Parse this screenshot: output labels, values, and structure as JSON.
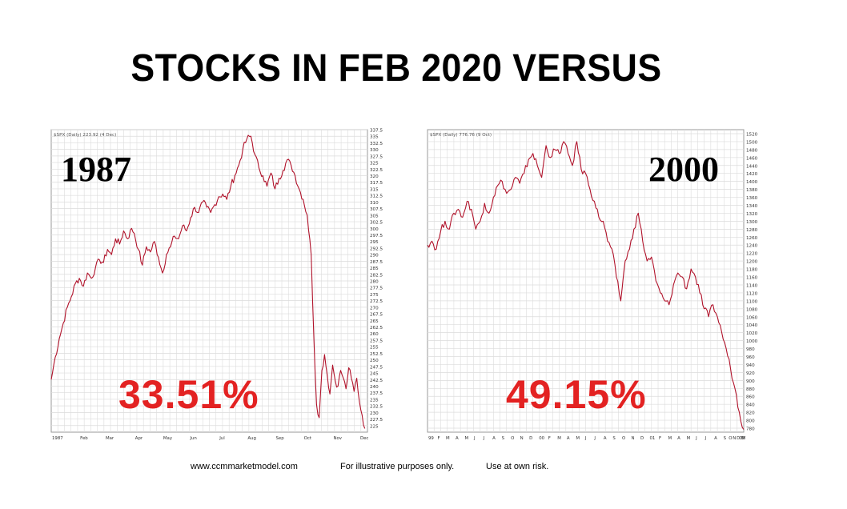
{
  "title": "STOCKS IN FEB 2020 VERSUS",
  "footer": {
    "site": "www.ccmmarketmodel.com",
    "note1": "For illustrative purposes only.",
    "note2": "Use at own risk."
  },
  "colors": {
    "line": "#b0122a",
    "grid": "#dcdcdc",
    "pct": "#e32222"
  },
  "chart_data": [
    {
      "type": "line",
      "legend": "$SPX (Daily) 223.92 (4 Dec)",
      "year_label": "1987",
      "decline_label": "33.51%",
      "ylim": [
        222.5,
        337.5
      ],
      "xlim": [
        0,
        236
      ],
      "y_ticks": [
        337.5,
        335.0,
        332.5,
        330.0,
        327.5,
        325.0,
        322.5,
        320.0,
        317.5,
        315.0,
        312.5,
        310.0,
        307.5,
        305.0,
        302.5,
        300.0,
        297.5,
        295.0,
        292.5,
        290.0,
        287.5,
        285.0,
        282.5,
        280.0,
        277.5,
        275.0,
        272.5,
        270.0,
        267.5,
        265.0,
        262.5,
        260.0,
        257.5,
        255.0,
        252.5,
        250.0,
        247.5,
        245.0,
        242.5,
        240.0,
        237.5,
        235.0,
        232.5,
        230.0,
        227.5,
        225.0
      ],
      "x_ticks": [
        {
          "x": 0,
          "label": "1987"
        },
        {
          "x": 21,
          "label": "Feb"
        },
        {
          "x": 40,
          "label": "Mar"
        },
        {
          "x": 62,
          "label": "Apr"
        },
        {
          "x": 83,
          "label": "May"
        },
        {
          "x": 103,
          "label": "Jun"
        },
        {
          "x": 125,
          "label": "Jul"
        },
        {
          "x": 146,
          "label": "Aug"
        },
        {
          "x": 167,
          "label": "Sep"
        },
        {
          "x": 188,
          "label": "Oct"
        },
        {
          "x": 210,
          "label": "Nov"
        },
        {
          "x": 230,
          "label": "Dec"
        }
      ],
      "series": [
        {
          "x": [
            0,
            3,
            6,
            9,
            12,
            15,
            18,
            21,
            24,
            27,
            30,
            33,
            36,
            39,
            42,
            45,
            48,
            51,
            54,
            57,
            60,
            62,
            65,
            68,
            71,
            74,
            77,
            80,
            83,
            86,
            89,
            92,
            95,
            98,
            101,
            104,
            107,
            110,
            113,
            116,
            119,
            122,
            125,
            128,
            131,
            134,
            137,
            140,
            143,
            146,
            149,
            152,
            155,
            158,
            161,
            164,
            167,
            170,
            173,
            176,
            179,
            182,
            185,
            188,
            191,
            194,
            196,
            198,
            200,
            202,
            204,
            206,
            208,
            210,
            212,
            214,
            216,
            218,
            220,
            222,
            224,
            226,
            228,
            230,
            232,
            234
          ],
          "y": [
            242.5,
            251.0,
            258.0,
            264.0,
            270.0,
            274.0,
            279.0,
            281.0,
            278.0,
            283.0,
            281.0,
            285.0,
            288.0,
            287.0,
            292.0,
            290.0,
            296.0,
            294.0,
            299.0,
            296.0,
            300.0,
            298.0,
            292.0,
            286.0,
            293.0,
            291.0,
            295.0,
            289.0,
            283.0,
            290.0,
            293.0,
            297.0,
            296.0,
            301.0,
            299.0,
            304.0,
            308.0,
            306.0,
            310.0,
            308.0,
            306.0,
            309.0,
            312.0,
            313.0,
            311.0,
            316.0,
            320.0,
            324.0,
            330.0,
            334.0,
            335.0,
            328.0,
            323.0,
            320.0,
            316.0,
            321.0,
            315.0,
            319.0,
            322.0,
            326.0,
            324.0,
            320.0,
            315.0,
            311.0,
            305.0,
            290.0,
            258.0,
            233.0,
            228.0,
            246.0,
            252.0,
            244.0,
            237.0,
            248.0,
            242.0,
            240.0,
            246.0,
            243.0,
            239.0,
            247.0,
            243.0,
            238.0,
            243.0,
            234.0,
            229.0,
            223.9
          ]
        }
      ]
    },
    {
      "type": "line",
      "legend": "$SPX (Daily) 776.76 (9 Oct)",
      "year_label": "2000",
      "decline_label": "49.15%",
      "ylim": [
        770,
        1530
      ],
      "xlim": [
        0,
        720
      ],
      "y_ticks": [
        1520,
        1500,
        1480,
        1460,
        1440,
        1420,
        1400,
        1380,
        1360,
        1340,
        1320,
        1300,
        1280,
        1260,
        1240,
        1220,
        1200,
        1180,
        1160,
        1140,
        1120,
        1100,
        1080,
        1060,
        1040,
        1020,
        1000,
        980,
        960,
        940,
        920,
        900,
        880,
        860,
        840,
        820,
        800,
        780
      ],
      "x_ticks": [
        {
          "x": 0,
          "label": "99"
        },
        {
          "x": 21,
          "label": "F"
        },
        {
          "x": 40,
          "label": "M"
        },
        {
          "x": 62,
          "label": "A"
        },
        {
          "x": 83,
          "label": "M"
        },
        {
          "x": 104,
          "label": "J"
        },
        {
          "x": 125,
          "label": "J"
        },
        {
          "x": 146,
          "label": "A"
        },
        {
          "x": 167,
          "label": "S"
        },
        {
          "x": 188,
          "label": "O"
        },
        {
          "x": 209,
          "label": "N"
        },
        {
          "x": 230,
          "label": "D"
        },
        {
          "x": 252,
          "label": "00"
        },
        {
          "x": 273,
          "label": "F"
        },
        {
          "x": 294,
          "label": "M"
        },
        {
          "x": 315,
          "label": "A"
        },
        {
          "x": 336,
          "label": "M"
        },
        {
          "x": 357,
          "label": "J"
        },
        {
          "x": 378,
          "label": "J"
        },
        {
          "x": 399,
          "label": "A"
        },
        {
          "x": 420,
          "label": "S"
        },
        {
          "x": 441,
          "label": "O"
        },
        {
          "x": 462,
          "label": "N"
        },
        {
          "x": 483,
          "label": "D"
        },
        {
          "x": 504,
          "label": "01"
        },
        {
          "x": 525,
          "label": "F"
        },
        {
          "x": 546,
          "label": "M"
        },
        {
          "x": 567,
          "label": "A"
        },
        {
          "x": 588,
          "label": "M"
        },
        {
          "x": 609,
          "label": "J"
        },
        {
          "x": 630,
          "label": "J"
        },
        {
          "x": 651,
          "label": "A"
        },
        {
          "x": 672,
          "label": "S"
        },
        {
          "x": 684,
          "label": "O"
        },
        {
          "x": 693,
          "label": "N"
        },
        {
          "x": 702,
          "label": "D"
        },
        {
          "x": 708,
          "label": "02"
        },
        {
          "x": 712,
          "label": "F"
        },
        {
          "x": 714,
          "label": "M"
        }
      ],
      "series": [
        {
          "x": [
            0,
            10,
            20,
            30,
            40,
            50,
            60,
            70,
            80,
            90,
            100,
            110,
            120,
            130,
            140,
            150,
            160,
            170,
            180,
            190,
            200,
            210,
            220,
            230,
            240,
            250,
            260,
            270,
            280,
            290,
            300,
            310,
            320,
            330,
            340,
            350,
            360,
            370,
            380,
            390,
            400,
            410,
            420,
            430,
            440,
            450,
            460,
            470,
            480,
            490,
            500,
            510,
            520,
            530,
            540,
            550,
            560,
            570,
            580,
            590,
            600,
            610,
            620,
            630,
            640,
            650,
            660,
            670,
            680,
            690,
            700,
            710,
            720
          ],
          "y": [
            1240,
            1250,
            1230,
            1275,
            1300,
            1280,
            1320,
            1330,
            1310,
            1350,
            1330,
            1280,
            1300,
            1345,
            1320,
            1360,
            1390,
            1400,
            1370,
            1380,
            1410,
            1395,
            1420,
            1455,
            1470,
            1440,
            1410,
            1490,
            1460,
            1480,
            1470,
            1500,
            1470,
            1440,
            1500,
            1430,
            1420,
            1380,
            1350,
            1310,
            1300,
            1250,
            1230,
            1160,
            1100,
            1200,
            1230,
            1280,
            1320,
            1250,
            1200,
            1210,
            1150,
            1120,
            1100,
            1090,
            1140,
            1170,
            1160,
            1130,
            1180,
            1160,
            1120,
            1080,
            1060,
            1090,
            1060,
            1020,
            980,
            930,
            880,
            820,
            776.76
          ]
        }
      ]
    }
  ]
}
